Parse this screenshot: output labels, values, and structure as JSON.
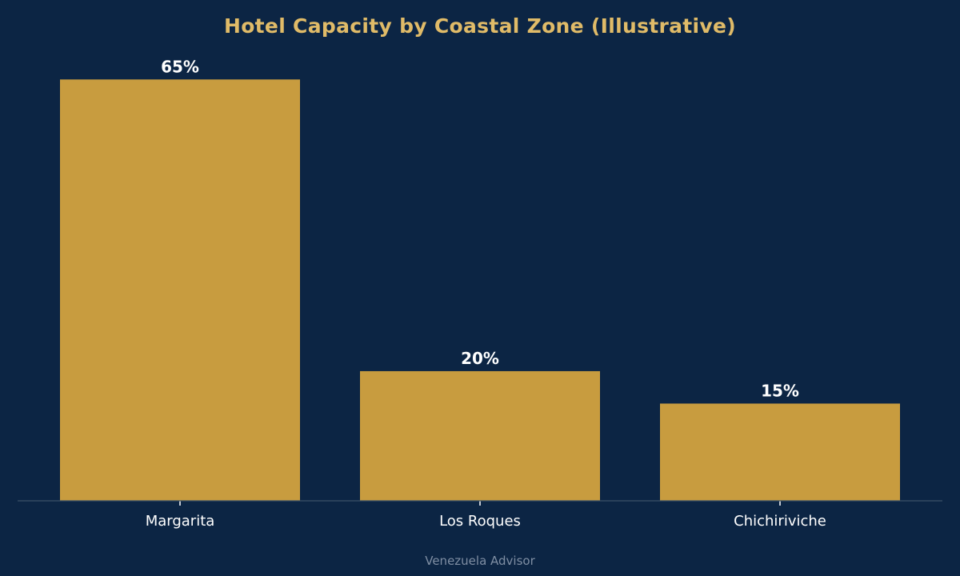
{
  "chart_data": {
    "type": "bar",
    "title": "Hotel Capacity by Coastal Zone (Illustrative)",
    "categories": [
      "Margarita",
      "Los Roques",
      "Chichiriviche"
    ],
    "values": [
      65,
      20,
      15
    ],
    "value_labels": [
      "65%",
      "20%",
      "15%"
    ],
    "unit": "%",
    "ylim": [
      0,
      68.25
    ],
    "grid": false,
    "xlabel": "",
    "ylabel": ""
  },
  "footer": "Venezuela Advisor",
  "colors": {
    "background": "#0c2544",
    "bar": "#c89c3f",
    "title": "#e0bb68",
    "tick_text": "#ffffff",
    "data_label": "#ffffff",
    "axis_line": "#3b5068",
    "footer": "#7f8ea3"
  }
}
